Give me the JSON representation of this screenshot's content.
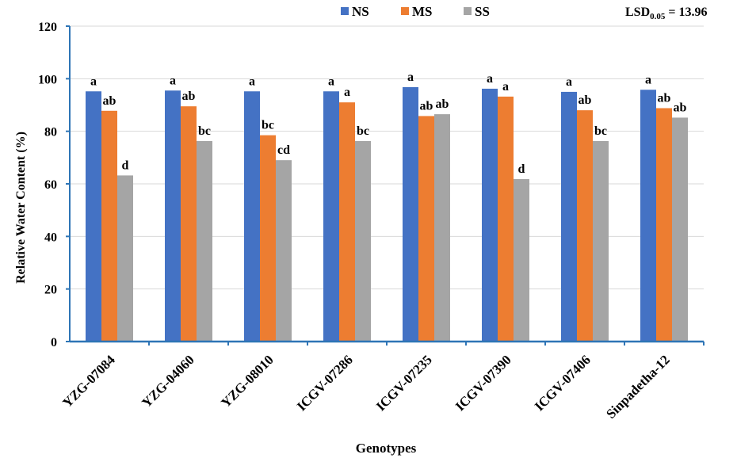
{
  "chart_data": {
    "type": "bar",
    "categories": [
      "YZG-07084",
      "YZG-04060",
      "YZG-08010",
      "ICGV-07286",
      "ICGV-07235",
      "ICGV-07390",
      "ICGV-07406",
      "Sinpadetha-12"
    ],
    "series": [
      {
        "name": "NS",
        "color": "#4472C4",
        "values": [
          95.2,
          95.5,
          95.2,
          95.2,
          96.8,
          96.2,
          95.0,
          95.8
        ],
        "letters": [
          "a",
          "a",
          "a",
          "a",
          "a",
          "a",
          "a",
          "a"
        ]
      },
      {
        "name": "MS",
        "color": "#ED7D31",
        "values": [
          87.8,
          89.5,
          78.5,
          91.0,
          85.8,
          93.2,
          88.0,
          88.8
        ],
        "letters": [
          "ab",
          "ab",
          "bc",
          "a",
          "ab",
          "a",
          "ab",
          "ab"
        ]
      },
      {
        "name": "SS",
        "color": "#A5A5A5",
        "values": [
          63.2,
          76.3,
          69.0,
          76.3,
          86.5,
          61.8,
          76.3,
          85.2
        ],
        "letters": [
          "d",
          "bc",
          "cd",
          "bc",
          "ab",
          "d",
          "bc",
          "ab"
        ]
      }
    ],
    "xlabel": "Genotypes",
    "ylabel": "Relative Water Content (%)",
    "ylim": [
      0,
      120
    ],
    "yticks": [
      "0",
      "20",
      "40",
      "60",
      "80",
      "100",
      "120"
    ],
    "grid": true,
    "legend_position": "top",
    "lsd": {
      "prefix": "LSD",
      "subscript": "0.05",
      "suffix": " = 13.96"
    },
    "axis_color": "#2E75B6",
    "grid_color": "#D9D9D9"
  }
}
